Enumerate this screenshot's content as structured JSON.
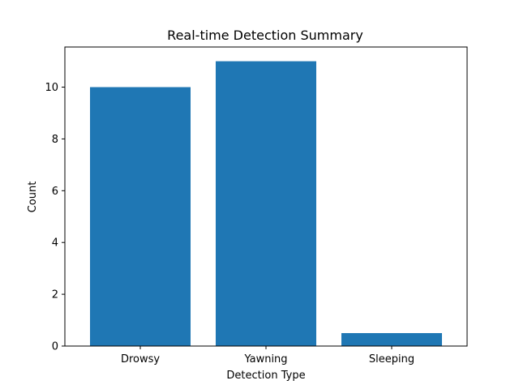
{
  "chart_data": {
    "type": "bar",
    "title": "Real-time Detection Summary",
    "xlabel": "Detection Type",
    "ylabel": "Count",
    "categories": [
      "Drowsy",
      "Yawning",
      "Sleeping"
    ],
    "values": [
      10,
      11,
      0.5
    ],
    "ylim": [
      0,
      11.55
    ],
    "yticks": [
      0,
      2,
      4,
      6,
      8,
      10
    ],
    "grid": false,
    "bar_color": "#1f77b4"
  }
}
